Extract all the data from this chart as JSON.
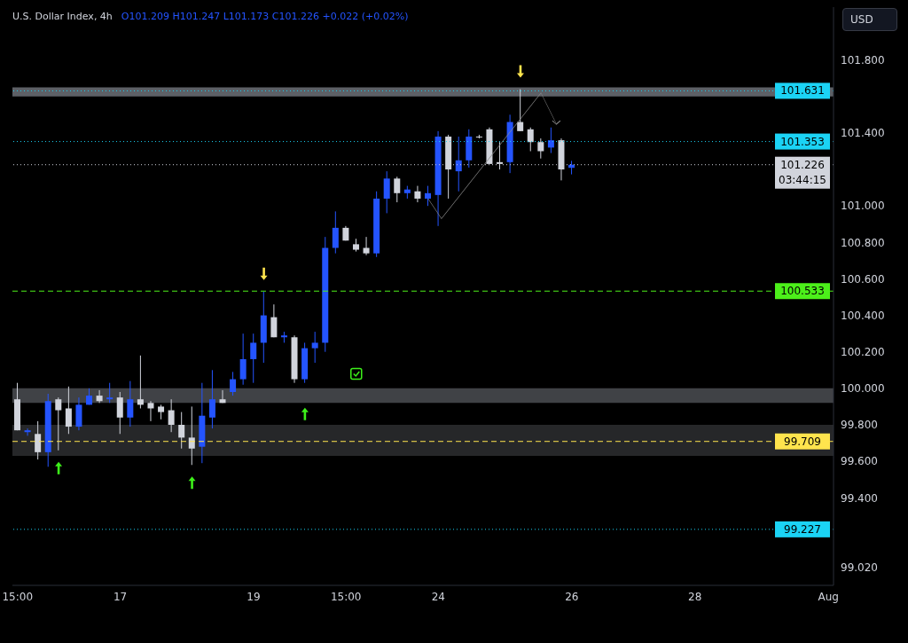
{
  "chart_data": {
    "type": "candlestick",
    "title": "U.S. Dollar Index, 4h",
    "subtitle": "O101.209 H101.247 L101.173 C101.226 +0.022 (+0.02%)",
    "categories": [
      "15:00",
      null,
      null,
      null,
      null,
      null,
      null,
      null,
      null,
      null,
      "17",
      null,
      null,
      null,
      null,
      null,
      null,
      null,
      null,
      null,
      null,
      null,
      null,
      "19",
      null,
      null,
      null,
      null,
      null,
      null,
      null,
      null,
      "15:00",
      null,
      null,
      null,
      null,
      null,
      null,
      null,
      null,
      "24",
      null,
      null,
      null,
      null,
      null,
      null,
      null,
      null,
      null,
      null,
      null,
      null,
      "26",
      null,
      null,
      null,
      null,
      null,
      null,
      null,
      null,
      null,
      null,
      null,
      "28",
      null,
      null,
      null,
      null,
      null,
      null,
      null,
      null,
      null,
      null,
      null,
      null,
      "Aug"
    ],
    "ohlc": [
      [
        99.94,
        100.03,
        99.77,
        99.77
      ],
      [
        99.76,
        99.78,
        99.74,
        99.77
      ],
      [
        99.75,
        99.82,
        99.61,
        99.65
      ],
      [
        99.65,
        99.97,
        99.57,
        99.93
      ],
      [
        99.94,
        99.95,
        99.66,
        99.88
      ],
      [
        99.89,
        100.01,
        99.75,
        99.79
      ],
      [
        99.79,
        99.95,
        99.77,
        99.91
      ],
      [
        99.91,
        100.0,
        99.91,
        99.96
      ],
      [
        99.96,
        99.99,
        99.92,
        99.93
      ],
      [
        99.94,
        100.03,
        99.92,
        99.95
      ],
      [
        99.95,
        99.98,
        99.75,
        99.84
      ],
      [
        99.84,
        100.04,
        99.79,
        99.94
      ],
      [
        99.94,
        100.18,
        99.89,
        99.91
      ],
      [
        99.92,
        99.93,
        99.82,
        99.89
      ],
      [
        99.9,
        99.91,
        99.83,
        99.87
      ],
      [
        99.88,
        99.94,
        99.76,
        99.8
      ],
      [
        99.8,
        99.87,
        99.67,
        99.73
      ],
      [
        99.73,
        99.9,
        99.58,
        99.67
      ],
      [
        99.68,
        100.03,
        99.59,
        99.85
      ],
      [
        99.84,
        100.1,
        99.78,
        99.94
      ],
      [
        99.94,
        99.99,
        99.92,
        99.92
      ],
      [
        99.98,
        100.09,
        99.96,
        100.05
      ],
      [
        100.05,
        100.3,
        100.02,
        100.16
      ],
      [
        100.16,
        100.3,
        100.03,
        100.25
      ],
      [
        100.25,
        100.53,
        100.14,
        100.4
      ],
      [
        100.39,
        100.46,
        100.28,
        100.28
      ],
      [
        100.28,
        100.31,
        100.25,
        100.29
      ],
      [
        100.28,
        100.29,
        100.03,
        100.05
      ],
      [
        100.05,
        100.25,
        100.03,
        100.22
      ],
      [
        100.22,
        100.31,
        100.14,
        100.25
      ],
      [
        100.25,
        100.83,
        100.2,
        100.77
      ],
      [
        100.77,
        100.97,
        100.74,
        100.88
      ],
      [
        100.88,
        100.89,
        100.81,
        100.81
      ],
      [
        100.79,
        100.82,
        100.75,
        100.76
      ],
      [
        100.77,
        100.83,
        100.73,
        100.74
      ],
      [
        100.74,
        101.08,
        100.72,
        101.04
      ],
      [
        101.04,
        101.19,
        100.96,
        101.15
      ],
      [
        101.15,
        101.16,
        101.02,
        101.07
      ],
      [
        101.07,
        101.11,
        101.04,
        101.09
      ],
      [
        101.08,
        101.11,
        101.02,
        101.04
      ],
      [
        101.04,
        101.11,
        101.0,
        101.07
      ],
      [
        101.06,
        101.41,
        100.89,
        101.38
      ],
      [
        101.38,
        101.39,
        101.04,
        101.2
      ],
      [
        101.19,
        101.38,
        101.08,
        101.25
      ],
      [
        101.25,
        101.42,
        101.21,
        101.38
      ],
      [
        101.38,
        101.39,
        101.37,
        101.38
      ],
      [
        101.42,
        101.43,
        101.23,
        101.23
      ],
      [
        101.24,
        101.35,
        101.2,
        101.23
      ],
      [
        101.24,
        101.5,
        101.18,
        101.46
      ],
      [
        101.46,
        101.64,
        101.41,
        101.41
      ],
      [
        101.42,
        101.43,
        101.3,
        101.35
      ],
      [
        101.35,
        101.37,
        101.26,
        101.3
      ],
      [
        101.32,
        101.43,
        101.29,
        101.36
      ],
      [
        101.36,
        101.37,
        101.14,
        101.2
      ],
      [
        101.209,
        101.247,
        101.173,
        101.226
      ],
      null,
      null,
      null,
      null,
      null,
      null,
      null,
      null,
      null,
      null,
      null,
      null,
      null,
      null,
      null,
      null,
      null,
      null,
      null,
      null,
      null,
      null,
      null,
      null,
      null
    ],
    "colors": [
      "#d1d4dc",
      "#2454ff",
      "#d1d4dc",
      "#2454ff",
      "#d1d4dc",
      "#d1d4dc",
      "#2454ff",
      "#2454ff",
      "#d1d4dc",
      "#2454ff",
      "#d1d4dc",
      "#2454ff",
      "#d1d4dc",
      "#d1d4dc",
      "#d1d4dc",
      "#d1d4dc",
      "#d1d4dc",
      "#d1d4dc",
      "#2454ff",
      "#2454ff",
      "#d1d4dc",
      "#2454ff",
      "#2454ff",
      "#2454ff",
      "#2454ff",
      "#d1d4dc",
      "#2454ff",
      "#d1d4dc",
      "#2454ff",
      "#2454ff",
      "#2454ff",
      "#2454ff",
      "#d1d4dc",
      "#d1d4dc",
      "#d1d4dc",
      "#2454ff",
      "#2454ff",
      "#d1d4dc",
      "#2454ff",
      "#d1d4dc",
      "#2454ff",
      "#2454ff",
      "#d1d4dc",
      "#2454ff",
      "#2454ff",
      "#d1d4dc",
      "#d1d4dc",
      "#d1d4dc",
      "#2454ff",
      "#d1d4dc",
      "#d1d4dc",
      "#d1d4dc",
      "#2454ff",
      "#d1d4dc",
      "#2454ff",
      null,
      null,
      null,
      null,
      null,
      null,
      null,
      null,
      null,
      null,
      null,
      null,
      null,
      null,
      null,
      null,
      null,
      null,
      null,
      null,
      null,
      null,
      null,
      null,
      null
    ],
    "ylim": [
      98.92,
      102.09
    ],
    "yticks": [
      {
        "value": 99.02,
        "label": "99.020"
      },
      {
        "value": 99.4,
        "label": "99.400"
      },
      {
        "value": 99.6,
        "label": "99.600"
      },
      {
        "value": 99.8,
        "label": "99.800"
      },
      {
        "value": 100.0,
        "label": "100.000"
      },
      {
        "value": 100.2,
        "label": "100.200"
      },
      {
        "value": 100.4,
        "label": "100.400"
      },
      {
        "value": 100.6,
        "label": "100.600"
      },
      {
        "value": 100.8,
        "label": "100.800"
      },
      {
        "value": 101.0,
        "label": "101.000"
      },
      {
        "value": 101.4,
        "label": "101.400"
      },
      {
        "value": 101.8,
        "label": "101.800"
      }
    ],
    "grid": false,
    "legend": false,
    "ref_lines": [
      {
        "axis": "y",
        "value": 101.631,
        "label": "101.631",
        "color": "#1bd3f5",
        "line_style": "dotted"
      },
      {
        "axis": "y",
        "value": 101.353,
        "label": "101.353",
        "color": "#1bd3f5",
        "line_style": "dotted"
      },
      {
        "axis": "y",
        "value": 101.226,
        "label": "101.226\n03:44:15",
        "color": "#d1d4dc",
        "line_style": "dotted"
      },
      {
        "axis": "y",
        "value": 100.533,
        "label": "100.533",
        "color": "#4cf01a",
        "line_style": "dashed"
      },
      {
        "axis": "y",
        "value": 99.709,
        "label": "99.709",
        "color": "#ffe44d",
        "line_style": "dashed"
      },
      {
        "axis": "y",
        "value": 99.227,
        "label": "99.227",
        "color": "#1bd3f5",
        "line_style": "dotted"
      }
    ],
    "bands": [
      {
        "axis": "y",
        "from": 101.6,
        "to": 101.65,
        "color": "#5d6066"
      },
      {
        "axis": "y",
        "from": 99.92,
        "to": 100.0,
        "color": "#404246"
      },
      {
        "axis": "y",
        "from": 99.63,
        "to": 99.8,
        "color": "#262729"
      }
    ],
    "annotations": [
      "USD"
    ]
  }
}
